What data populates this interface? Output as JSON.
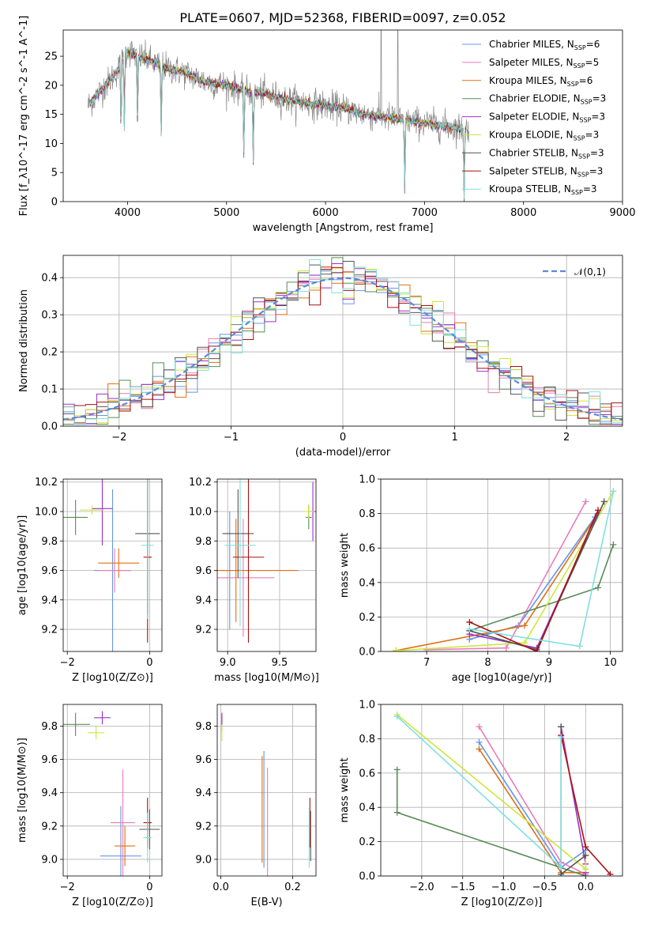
{
  "figure": {
    "title": "PLATE=0607, MJD=52368, FIBERID=0097, z=0.052"
  },
  "series_styles": [
    {
      "name": "Chabrier MILES",
      "nssp": "6",
      "color": "#6495ed"
    },
    {
      "name": "Salpeter MILES",
      "nssp": "5",
      "color": "#e87dba"
    },
    {
      "name": "Kroupa MILES",
      "nssp": "6",
      "color": "#e07010"
    },
    {
      "name": "Chabrier ELODIE",
      "nssp": "3",
      "color": "#5a8a5a"
    },
    {
      "name": "Salpeter ELODIE",
      "nssp": "3",
      "color": "#9932cc"
    },
    {
      "name": "Kroupa ELODIE",
      "nssp": "3",
      "color": "#cde63c"
    },
    {
      "name": "Chabrier STELIB",
      "nssp": "3",
      "color": "#555555"
    },
    {
      "name": "Salpeter STELIB",
      "nssp": "3",
      "color": "#aa1111"
    },
    {
      "name": "Kroupa STELIB",
      "nssp": "3",
      "color": "#80dfe0"
    }
  ],
  "chart_data": [
    {
      "id": "spectrum",
      "type": "line",
      "title": "PLATE=0607, MJD=52368, FIBERID=0097, z=0.052",
      "xlabel": "wavelength [Angstrom, rest frame]",
      "ylabel": "Flux [f_λ10^-17 erg cm^-2 s^-1 A^-1]",
      "xlim": [
        3350,
        9000
      ],
      "ylim": [
        0,
        29.5
      ],
      "xticks": [
        "4000",
        "5000",
        "6000",
        "7000",
        "8000",
        "9000"
      ],
      "yticks": [
        "0",
        "5",
        "10",
        "15",
        "20",
        "25"
      ],
      "legend_position": "upper-right",
      "continuum": {
        "x": [
          3600,
          3700,
          3800,
          3900,
          4000,
          4100,
          4200,
          4300,
          4400,
          4500,
          4600,
          4800,
          5000,
          5200,
          5400,
          5600,
          5800,
          6000,
          6200,
          6400,
          6600,
          6800,
          7000,
          7200,
          7400
        ],
        "y": [
          16.5,
          18.5,
          20.5,
          22.5,
          26.0,
          25.0,
          24.5,
          23.5,
          23.0,
          22.5,
          22.0,
          20.5,
          20.0,
          19.0,
          18.5,
          17.5,
          17.0,
          16.5,
          16.0,
          15.0,
          14.5,
          14.0,
          13.5,
          13.0,
          12.5
        ]
      },
      "absorption_features": [
        3934,
        3968,
        4101,
        4340,
        5175,
        5270,
        6800,
        7400
      ],
      "emission_features": [
        6563,
        6730
      ]
    },
    {
      "id": "residuals",
      "type": "step",
      "xlabel": "(data-model)/error",
      "ylabel": "Normed distribution",
      "xlim": [
        -2.5,
        2.5
      ],
      "ylim": [
        0,
        0.46
      ],
      "xticks": [
        "−2",
        "−1",
        "0",
        "1",
        "2"
      ],
      "yticks": [
        "0.0",
        "0.1",
        "0.2",
        "0.3",
        "0.4"
      ],
      "reference_curve": {
        "label": "𝒩(0,1)",
        "mean": 0,
        "sigma": 1,
        "style": "dashed"
      },
      "bins": {
        "start": -2.5,
        "width": 0.1,
        "count": 50
      }
    },
    {
      "id": "age-vs-Z",
      "type": "errorbar",
      "xlabel": "Z [log10(Z/Z⊙)]",
      "ylabel": "age [log10(age/yr)]",
      "xlim": [
        -2.1,
        0.3
      ],
      "ylim": [
        9.05,
        10.22
      ],
      "xticks": [
        "−2",
        "0"
      ],
      "yticks": [
        "9.2",
        "9.4",
        "9.6",
        "9.8",
        "10.0",
        "10.2"
      ],
      "points": [
        {
          "s": 0,
          "x": -0.9,
          "xe": 0.45,
          "y": 9.6,
          "ye": 0.55
        },
        {
          "s": 1,
          "x": -0.85,
          "xe": 0.4,
          "y": 9.6,
          "ye": 0.15
        },
        {
          "s": 2,
          "x": -0.75,
          "xe": 0.5,
          "y": 9.65,
          "ye": 0.1
        },
        {
          "s": 3,
          "x": -1.8,
          "xe": 0.3,
          "y": 9.96,
          "ye": 0.12
        },
        {
          "s": 4,
          "x": -1.15,
          "xe": 0.25,
          "y": 10.02,
          "ye": 0.25
        },
        {
          "s": 5,
          "x": -1.4,
          "xe": 0.3,
          "y": 10.01,
          "ye": 0.03
        },
        {
          "s": 6,
          "x": -0.05,
          "xe": 0.3,
          "y": 9.85,
          "ye": 0.55
        },
        {
          "s": 7,
          "x": -0.05,
          "xe": 0.1,
          "y": 9.69,
          "ye": 0.58
        },
        {
          "s": 8,
          "x": -0.05,
          "xe": 0.15,
          "y": 9.77,
          "ye": 0.5
        }
      ]
    },
    {
      "id": "age-vs-mass",
      "type": "errorbar",
      "xlabel": "mass [log10(M/M⊙)]",
      "ylabel": "",
      "xlim": [
        8.9,
        9.85
      ],
      "ylim": [
        9.05,
        10.22
      ],
      "xticks": [
        "9.0",
        "9.5"
      ],
      "yticks": [
        "9.2",
        "9.4",
        "9.6",
        "9.8",
        "10.0",
        "10.2"
      ],
      "points": [
        {
          "s": 0,
          "x": 9.02,
          "xe": 0.08,
          "y": 9.6,
          "ye": 0.4
        },
        {
          "s": 1,
          "x": 9.15,
          "xe": 0.3,
          "y": 9.55,
          "ye": 0.4
        },
        {
          "s": 2,
          "x": 9.08,
          "xe": 0.6,
          "y": 9.6,
          "ye": 0.35
        },
        {
          "s": 3,
          "x": 9.78,
          "xe": 0.03,
          "y": 9.96,
          "ye": 0.08
        },
        {
          "s": 4,
          "x": 9.82,
          "xe": 0.04,
          "y": 10.0,
          "ye": 0.2
        },
        {
          "s": 5,
          "x": 9.78,
          "xe": 0.05,
          "y": 10.0,
          "ye": 0.05
        },
        {
          "s": 6,
          "x": 9.1,
          "xe": 0.15,
          "y": 9.85,
          "ye": 0.3
        },
        {
          "s": 7,
          "x": 9.2,
          "xe": 0.15,
          "y": 9.69,
          "ye": 0.58
        },
        {
          "s": 8,
          "x": 9.12,
          "xe": 0.15,
          "y": 9.77,
          "ye": 0.55
        }
      ]
    },
    {
      "id": "mass-weight-vs-age",
      "type": "line",
      "xlabel": "age [log10(age/yr)]",
      "ylabel": "mass weight",
      "xlim": [
        6.25,
        10.2
      ],
      "ylim": [
        0,
        1.0
      ],
      "xticks": [
        "7",
        "8",
        "9",
        "10"
      ],
      "yticks": [
        "0.0",
        "0.2",
        "0.4",
        "0.6",
        "0.8",
        "1.0"
      ],
      "grid": true,
      "series": [
        {
          "s": 0,
          "x": [
            7.7,
            8.5,
            9.75
          ],
          "y": [
            0.07,
            0.15,
            0.78
          ]
        },
        {
          "s": 1,
          "x": [
            7.0,
            8.3,
            9.6
          ],
          "y": [
            0.01,
            0.02,
            0.87
          ]
        },
        {
          "s": 2,
          "x": [
            6.5,
            8.6,
            9.8
          ],
          "y": [
            0.005,
            0.15,
            0.8
          ]
        },
        {
          "s": 3,
          "x": [
            7.7,
            9.8,
            10.05
          ],
          "y": [
            0.12,
            0.37,
            0.62
          ]
        },
        {
          "s": 4,
          "x": [
            7.7,
            8.8,
            9.8
          ],
          "y": [
            0.1,
            0.02,
            0.8
          ]
        },
        {
          "s": 5,
          "x": [
            6.5,
            8.6,
            10.05
          ],
          "y": [
            0.005,
            0.05,
            0.93
          ]
        },
        {
          "s": 6,
          "x": [
            7.7,
            8.8,
            9.9
          ],
          "y": [
            0.12,
            0.01,
            0.87
          ]
        },
        {
          "s": 7,
          "x": [
            7.7,
            8.8,
            9.8
          ],
          "y": [
            0.17,
            0.0,
            0.82
          ]
        },
        {
          "s": 8,
          "x": [
            7.7,
            9.5,
            10.05
          ],
          "y": [
            0.13,
            0.03,
            0.93
          ]
        }
      ]
    },
    {
      "id": "mass-vs-Z",
      "type": "errorbar",
      "xlabel": "Z [log10(Z/Z⊙)]",
      "ylabel": "mass [log10(M/M⊙)]",
      "xlim": [
        -2.1,
        0.3
      ],
      "ylim": [
        8.9,
        9.93
      ],
      "xticks": [
        "−2",
        "0"
      ],
      "yticks": [
        "9.0",
        "9.2",
        "9.4",
        "9.6",
        "9.8"
      ],
      "points": [
        {
          "s": 0,
          "x": -0.7,
          "xe": 0.5,
          "y": 9.02,
          "ye": 0.3
        },
        {
          "s": 1,
          "x": -0.65,
          "xe": 0.3,
          "y": 9.22,
          "ye": 0.32
        },
        {
          "s": 2,
          "x": -0.6,
          "xe": 0.25,
          "y": 9.08,
          "ye": 0.12
        },
        {
          "s": 3,
          "x": -1.8,
          "xe": 0.35,
          "y": 9.81,
          "ye": 0.07
        },
        {
          "s": 4,
          "x": -1.15,
          "xe": 0.2,
          "y": 9.85,
          "ye": 0.04
        },
        {
          "s": 5,
          "x": -1.3,
          "xe": 0.2,
          "y": 9.76,
          "ye": 0.04
        },
        {
          "s": 6,
          "x": 0.0,
          "xe": 0.25,
          "y": 9.18,
          "ye": 0.12
        },
        {
          "s": 7,
          "x": -0.05,
          "xe": 0.1,
          "y": 9.22,
          "ye": 0.15
        },
        {
          "s": 8,
          "x": -0.05,
          "xe": 0.1,
          "y": 9.13,
          "ye": 0.15
        }
      ]
    },
    {
      "id": "mass-vs-EBV",
      "type": "errorbar",
      "xlabel": "E(B-V)",
      "ylabel": "",
      "xlim": [
        -0.01,
        0.265
      ],
      "ylim": [
        8.9,
        9.93
      ],
      "xticks": [
        "0.0",
        "0.2"
      ],
      "yticks": [
        "9.0",
        "9.2",
        "9.4",
        "9.6",
        "9.8"
      ],
      "points": [
        {
          "s": 0,
          "x": 0.12,
          "xe": 0.0,
          "y": 9.3,
          "ye": 0.35
        },
        {
          "s": 1,
          "x": 0.13,
          "xe": 0.0,
          "y": 9.2,
          "ye": 0.35
        },
        {
          "s": 2,
          "x": 0.115,
          "xe": 0.0,
          "y": 9.3,
          "ye": 0.32
        },
        {
          "s": 3,
          "x": 0.003,
          "xe": 0.0,
          "y": 9.82,
          "ye": 0.05
        },
        {
          "s": 4,
          "x": 0.003,
          "xe": 0.0,
          "y": 9.84,
          "ye": 0.04
        },
        {
          "s": 5,
          "x": 0.003,
          "xe": 0.0,
          "y": 9.76,
          "ye": 0.05
        },
        {
          "s": 6,
          "x": 0.25,
          "xe": 0.0,
          "y": 9.14,
          "ye": 0.15
        },
        {
          "s": 7,
          "x": 0.248,
          "xe": 0.0,
          "y": 9.22,
          "ye": 0.15
        },
        {
          "s": 8,
          "x": 0.246,
          "xe": 0.0,
          "y": 9.13,
          "ye": 0.18
        }
      ]
    },
    {
      "id": "mass-weight-vs-Z",
      "type": "line",
      "xlabel": "Z [log10(Z/Z⊙)]",
      "ylabel": "mass weight",
      "xlim": [
        -2.5,
        0.45
      ],
      "ylim": [
        0,
        1.0
      ],
      "xticks": [
        "−2.0",
        "−1.5",
        "−1.0",
        "−0.5",
        "0.0"
      ],
      "yticks": [
        "0.0",
        "0.2",
        "0.4",
        "0.6",
        "0.8",
        "1.0"
      ],
      "grid": true,
      "series": [
        {
          "s": 0,
          "x": [
            -1.3,
            -0.3,
            0.0
          ],
          "y": [
            0.78,
            0.05,
            0.15
          ]
        },
        {
          "s": 1,
          "x": [
            -1.3,
            -0.3,
            0.0
          ],
          "y": [
            0.87,
            0.08,
            0.01
          ]
        },
        {
          "s": 2,
          "x": [
            -1.3,
            -0.3,
            0.0
          ],
          "y": [
            0.74,
            0.02,
            0.02
          ]
        },
        {
          "s": 3,
          "x": [
            -2.3,
            -2.3,
            0.0
          ],
          "y": [
            0.62,
            0.37,
            0.0
          ]
        },
        {
          "s": 4,
          "x": [
            -0.3,
            0.0,
            0.0
          ],
          "y": [
            0.87,
            0.07,
            0.02
          ]
        },
        {
          "s": 5,
          "x": [
            -2.3,
            0.0,
            0.0
          ],
          "y": [
            0.94,
            0.04,
            0.12
          ]
        },
        {
          "s": 6,
          "x": [
            -0.3,
            -0.3,
            0.0
          ],
          "y": [
            0.87,
            0.01,
            0.12
          ]
        },
        {
          "s": 7,
          "x": [
            -0.3,
            0.0,
            0.3
          ],
          "y": [
            0.82,
            0.17,
            0.01
          ]
        },
        {
          "s": 8,
          "x": [
            -2.3,
            -0.3,
            -0.3
          ],
          "y": [
            0.93,
            0.05,
            0.81
          ]
        }
      ]
    }
  ]
}
